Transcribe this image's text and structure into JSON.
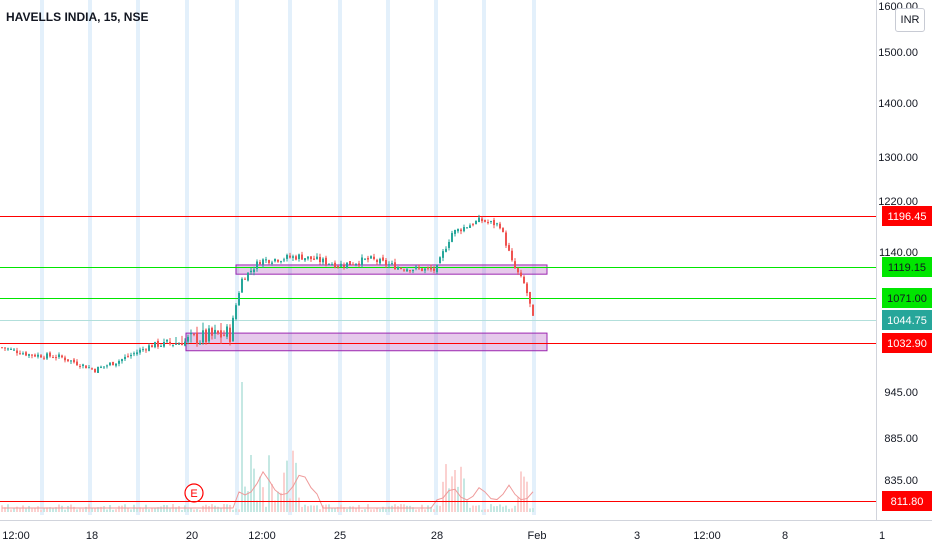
{
  "header": {
    "symbol": "HAVELLS INDIA, 15, NSE",
    "currency": "INR"
  },
  "chart_data": {
    "type": "candlestick",
    "title": "HAVELLS INDIA, 15, NSE",
    "ylim": [
      790,
      1610
    ],
    "y_ticks": [
      {
        "value": 1600,
        "label": "1600.00"
      },
      {
        "value": 1500,
        "label": "1500.00"
      },
      {
        "value": 1400,
        "label": "1400.00"
      },
      {
        "value": 1300,
        "label": "1300.00"
      },
      {
        "value": 1220,
        "label": "1220.00"
      },
      {
        "value": 1140,
        "label": "1140.00"
      },
      {
        "value": 945,
        "label": "945.00"
      },
      {
        "value": 885,
        "label": "885.00"
      },
      {
        "value": 835,
        "label": "835.00"
      }
    ],
    "x_ticks": [
      "12:00",
      "18",
      "20",
      "12:00",
      "25",
      "28",
      "Feb",
      "3",
      "12:00",
      "8",
      "1"
    ],
    "price_lines": [
      {
        "value": 1196.45,
        "label": "1196.45",
        "color": "#ff0000",
        "text_color": "#ffffff"
      },
      {
        "value": 1119.15,
        "label": "1119.15",
        "color": "#00e600",
        "text_color": "#131722"
      },
      {
        "value": 1071.0,
        "label": "1071.00",
        "color": "#00e600",
        "text_color": "#131722"
      },
      {
        "value": 1044.75,
        "label": "1044.75",
        "color": "#26a69a",
        "text_color": "#ffffff"
      },
      {
        "value": 1032.9,
        "label": "1032.90",
        "color": "#ff0000",
        "text_color": "#ffffff"
      },
      {
        "value": 811.8,
        "label": "811.80",
        "color": "#ff0000",
        "text_color": "#ffffff"
      }
    ],
    "zones": [
      {
        "x_from": "22 Jan 12:00",
        "x_to": "31 Jan 15:30",
        "y_low": 1108,
        "y_high": 1122,
        "color": "#9c27b0"
      },
      {
        "x_from": "20 Jan 09:15",
        "x_to": "31 Jan 15:30",
        "y_low": 1019,
        "y_high": 1038,
        "color": "#9c27b0"
      }
    ],
    "close_path": [
      {
        "day": "16",
        "close": 1025
      },
      {
        "day": "17",
        "close": 1012
      },
      {
        "day": "18",
        "close": 1008
      },
      {
        "day": "19",
        "close": 985
      },
      {
        "day": "19",
        "close": 1002
      },
      {
        "day": "20",
        "close": 1028
      },
      {
        "day": "21",
        "close": 1034
      },
      {
        "day": "22",
        "close": 1038
      },
      {
        "day": "22",
        "close": 1100
      },
      {
        "day": "23",
        "close": 1128
      },
      {
        "day": "24",
        "close": 1134
      },
      {
        "day": "25",
        "close": 1122
      },
      {
        "day": "26",
        "close": 1130
      },
      {
        "day": "27",
        "close": 1118
      },
      {
        "day": "28",
        "close": 1114
      },
      {
        "day": "28",
        "close": 1170
      },
      {
        "day": "29",
        "close": 1190
      },
      {
        "day": "30",
        "close": 1182
      },
      {
        "day": "30",
        "close": 1125
      },
      {
        "day": "31",
        "close": 1090
      },
      {
        "day": "31",
        "close": 1045
      }
    ],
    "volume_markers": [
      {
        "label": "E",
        "color": "#ff0000"
      }
    ],
    "colors": {
      "up": "#26a69a",
      "down": "#ef5350",
      "grid": "#e6eaf2"
    }
  }
}
